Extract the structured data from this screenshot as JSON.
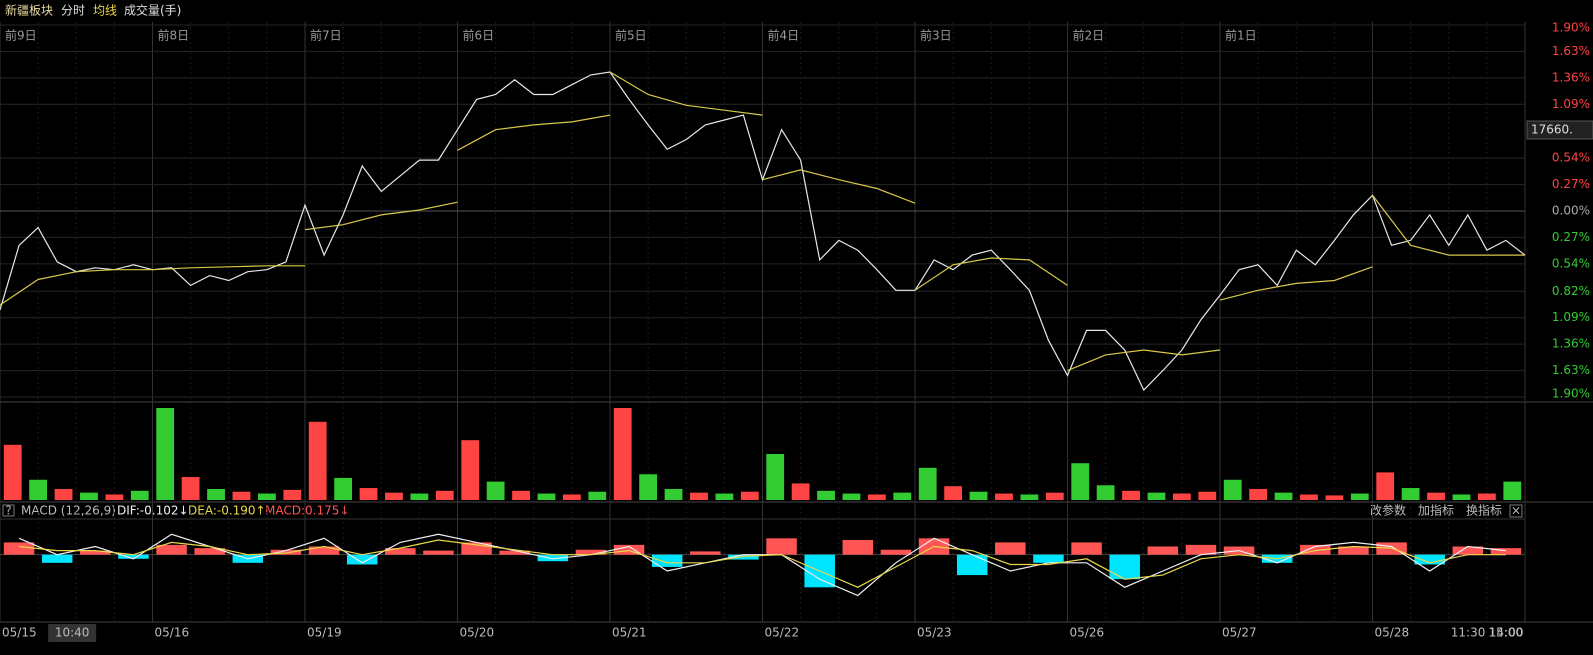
{
  "header": {
    "tabs": [
      "新疆板块",
      "分时",
      "均线",
      "成交量(手)"
    ]
  },
  "chart_data": [
    {
      "type": "line",
      "xlim": [
        0,
        10
      ],
      "ylim": [
        -1.9,
        1.9
      ],
      "grid": true,
      "xticks": [
        {
          "value": 0,
          "label": "前9日"
        },
        {
          "value": 1,
          "label": "前8日"
        },
        {
          "value": 2,
          "label": "前7日"
        },
        {
          "value": 3,
          "label": "前6日"
        },
        {
          "value": 4,
          "label": "前5日"
        },
        {
          "value": 5,
          "label": "前4日"
        },
        {
          "value": 6,
          "label": "前3日"
        },
        {
          "value": 7,
          "label": "前2日"
        },
        {
          "value": 8,
          "label": "前1日"
        }
      ],
      "yticks": [
        {
          "value": 1.9,
          "label": "1.90%"
        },
        {
          "value": 1.63,
          "label": "1.63%"
        },
        {
          "value": 1.36,
          "label": "1.36%"
        },
        {
          "value": 1.09,
          "label": "1.09%"
        },
        {
          "value": 0.54,
          "label": "0.54%"
        },
        {
          "value": 0.27,
          "label": "0.27%"
        },
        {
          "value": 0,
          "label": "0.00%"
        },
        {
          "value": -0.27,
          "label": "0.27%"
        },
        {
          "value": -0.54,
          "label": "0.54%"
        },
        {
          "value": -0.82,
          "label": "0.82%"
        },
        {
          "value": -1.09,
          "label": "1.09%"
        },
        {
          "value": -1.36,
          "label": "1.36%"
        },
        {
          "value": -1.63,
          "label": "1.63%"
        },
        {
          "value": -1.9,
          "label": "1.90%"
        }
      ],
      "up_color": "#ff4444",
      "down_color": "#33cc33",
      "flat_color": "#aaaaaa",
      "last_price_label": "17660.",
      "series": [
        {
          "color": "#e8e8e8",
          "x": [
            0,
            0.125,
            0.25,
            0.375,
            0.5,
            0.625,
            0.75,
            0.875,
            1,
            1.125,
            1.25,
            1.375,
            1.5,
            1.625,
            1.75,
            1.875,
            2,
            2.125,
            2.25,
            2.375,
            2.5,
            2.625,
            2.75,
            2.875,
            3,
            3.125,
            3.25,
            3.375,
            3.5,
            3.625,
            3.75,
            3.875,
            4,
            4.125,
            4.25,
            4.375,
            4.5,
            4.625,
            4.75,
            4.875,
            5,
            5.125,
            5.25,
            5.375,
            5.5,
            5.625,
            5.75,
            5.875,
            6,
            6.125,
            6.25,
            6.375,
            6.5,
            6.625,
            6.75,
            6.875,
            7,
            7.125,
            7.25,
            7.375,
            7.5,
            7.625,
            7.75,
            7.875,
            8,
            8.125,
            8.25,
            8.375,
            8.5,
            8.625,
            8.75,
            8.875,
            9,
            9.125,
            9.25,
            9.375,
            9.5,
            9.625,
            9.75,
            9.875,
            10
          ],
          "values": [
            -1.01,
            -0.35,
            -0.17,
            -0.52,
            -0.62,
            -0.58,
            -0.6,
            -0.55,
            -0.6,
            -0.58,
            -0.76,
            -0.66,
            -0.71,
            -0.62,
            -0.6,
            -0.52,
            0.06,
            -0.45,
            -0.04,
            0.46,
            0.2,
            0.36,
            0.52,
            0.52,
            0.83,
            1.14,
            1.19,
            1.34,
            1.19,
            1.19,
            1.29,
            1.39,
            1.42,
            1.14,
            0.88,
            0.63,
            0.73,
            0.88,
            0.93,
            0.98,
            0.32,
            0.83,
            0.52,
            -0.5,
            -0.3,
            -0.4,
            -0.6,
            -0.81,
            -0.81,
            -0.5,
            -0.6,
            -0.45,
            -0.4,
            -0.6,
            -0.81,
            -1.32,
            -1.68,
            -1.22,
            -1.22,
            -1.42,
            -1.83,
            -1.63,
            -1.42,
            -1.11,
            -0.86,
            -0.6,
            -0.55,
            -0.76,
            -0.4,
            -0.55,
            -0.3,
            -0.04,
            0.16,
            -0.35,
            -0.3,
            -0.04,
            -0.35,
            -0.04,
            -0.4,
            -0.3,
            -0.45
          ]
        },
        {
          "color": "#d8c84a",
          "x": [
            0,
            0.25,
            0.5,
            0.75,
            1,
            1.25,
            1.5,
            1.75,
            2,
            2,
            2,
            2.25,
            2.5,
            2.75,
            3,
            3,
            3,
            3.25,
            3.5,
            3.75,
            4,
            4,
            4,
            4.25,
            4.5,
            4.75,
            5,
            5,
            5,
            5.25,
            5.5,
            5.75,
            6,
            6,
            6,
            6.25,
            6.5,
            6.75,
            7,
            7,
            7,
            7.25,
            7.5,
            7.75,
            8,
            8,
            8,
            8.25,
            8.5,
            8.75,
            9,
            9,
            9,
            9.25,
            9.5,
            9.75,
            10
          ],
          "values": [
            -0.96,
            -0.7,
            -0.62,
            -0.6,
            -0.6,
            -0.58,
            -0.57,
            -0.56,
            -0.56,
            null,
            -0.19,
            -0.14,
            -0.04,
            0.01,
            0.09,
            null,
            0.62,
            0.83,
            0.88,
            0.91,
            0.98,
            null,
            1.42,
            1.19,
            1.08,
            1.03,
            0.98,
            null,
            0.32,
            0.42,
            0.32,
            0.23,
            0.08,
            null,
            -0.81,
            -0.55,
            -0.48,
            -0.5,
            -0.76,
            null,
            -1.63,
            -1.47,
            -1.42,
            -1.47,
            -1.42,
            null,
            -0.91,
            -0.81,
            -0.74,
            -0.71,
            -0.57,
            null,
            0.16,
            -0.35,
            -0.45,
            -0.45,
            -0.45
          ]
        }
      ]
    },
    {
      "type": "bar",
      "ylim": [
        0,
        100
      ],
      "values": [
        60,
        22,
        12,
        8,
        6,
        10,
        100,
        25,
        12,
        9,
        7,
        11,
        85,
        24,
        13,
        8,
        7,
        10,
        65,
        20,
        10,
        7,
        6,
        9,
        100,
        28,
        12,
        8,
        7,
        9,
        50,
        18,
        10,
        7,
        6,
        8,
        35,
        15,
        9,
        7,
        6,
        8,
        40,
        16,
        10,
        8,
        7,
        9,
        22,
        12,
        8,
        6,
        5,
        7,
        30,
        13,
        8,
        6,
        7,
        20
      ],
      "colors": [
        "#ff4444",
        "#33cc33",
        "#ff4444",
        "#33cc33",
        "#ff4444",
        "#33cc33",
        "#33cc33",
        "#ff4444",
        "#33cc33",
        "#ff4444",
        "#33cc33",
        "#ff4444",
        "#ff4444",
        "#33cc33",
        "#ff4444",
        "#ff4444",
        "#33cc33",
        "#ff4444",
        "#ff4444",
        "#33cc33",
        "#ff4444",
        "#33cc33",
        "#ff4444",
        "#33cc33",
        "#ff4444",
        "#33cc33",
        "#33cc33",
        "#ff4444",
        "#33cc33",
        "#ff4444",
        "#33cc33",
        "#ff4444",
        "#33cc33",
        "#33cc33",
        "#ff4444",
        "#33cc33",
        "#33cc33",
        "#ff4444",
        "#33cc33",
        "#ff4444",
        "#33cc33",
        "#ff4444",
        "#33cc33",
        "#33cc33",
        "#ff4444",
        "#33cc33",
        "#ff4444",
        "#ff4444",
        "#33cc33",
        "#ff4444",
        "#33cc33",
        "#ff4444",
        "#ff4444",
        "#33cc33",
        "#ff4444",
        "#33cc33",
        "#ff4444",
        "#33cc33",
        "#ff4444",
        "#33cc33"
      ]
    },
    {
      "type": "macd",
      "ylim": [
        -0.8,
        0.4
      ],
      "xlim": [
        0,
        10
      ],
      "xticks": [
        {
          "value": 0,
          "label": "05/15"
        },
        {
          "value": 0.46,
          "label": "10:40"
        },
        {
          "value": 1,
          "label": "05/16"
        },
        {
          "value": 2,
          "label": "05/19"
        },
        {
          "value": 3,
          "label": "05/20"
        },
        {
          "value": 4,
          "label": "05/21"
        },
        {
          "value": 5,
          "label": "05/22"
        },
        {
          "value": 6,
          "label": "05/23"
        },
        {
          "value": 7,
          "label": "05/26"
        },
        {
          "value": 8,
          "label": "05/27"
        },
        {
          "value": 9,
          "label": "05/28"
        },
        {
          "value": 9.5,
          "label": "11:30"
        },
        {
          "value": 9.75,
          "label": "14:00"
        },
        {
          "value": 10,
          "label": "15:00"
        }
      ],
      "highlight_tick": 1,
      "up_color": "#ff5555",
      "down_color": "#00e5ff",
      "values": [
        0.15,
        -0.1,
        0.05,
        -0.05,
        0.12,
        0.08,
        -0.1,
        0.06,
        0.1,
        -0.12,
        0.08,
        0.05,
        0.15,
        0.05,
        -0.08,
        0.06,
        0.12,
        -0.15,
        0.04,
        -0.06,
        0.2,
        -0.4,
        0.18,
        0.06,
        0.2,
        -0.25,
        0.15,
        -0.1,
        0.15,
        -0.3,
        0.1,
        0.12,
        0.1,
        -0.1,
        0.12,
        0.1,
        0.15,
        -0.12,
        0.1,
        0.08
      ],
      "series": [
        {
          "color": "#f0f0f0",
          "values": [
            0.2,
            0.0,
            0.1,
            -0.05,
            0.25,
            0.1,
            -0.05,
            0.05,
            0.2,
            -0.1,
            0.15,
            0.25,
            0.15,
            0.05,
            -0.05,
            0.0,
            0.1,
            -0.2,
            -0.1,
            0.0,
            0.0,
            -0.3,
            -0.5,
            -0.1,
            0.2,
            0.0,
            -0.2,
            -0.1,
            -0.1,
            -0.4,
            -0.2,
            0.0,
            0.05,
            -0.1,
            0.1,
            0.15,
            0.1,
            -0.2,
            0.1,
            0.05
          ]
        },
        {
          "color": "#e8d84a",
          "values": [
            0.1,
            0.05,
            0.05,
            0.0,
            0.15,
            0.1,
            0.0,
            0.02,
            0.1,
            0.0,
            0.08,
            0.18,
            0.12,
            0.06,
            0.0,
            0.0,
            0.05,
            -0.1,
            -0.1,
            -0.02,
            0.0,
            -0.2,
            -0.4,
            -0.15,
            0.1,
            0.05,
            -0.12,
            -0.12,
            -0.05,
            -0.3,
            -0.25,
            -0.05,
            0.0,
            -0.05,
            0.05,
            0.1,
            0.08,
            -0.1,
            0.0,
            0.0
          ]
        }
      ]
    }
  ],
  "indicator_bar": {
    "help": "?",
    "name": "MACD (12,26,9)",
    "dif": "DIF:-0.102↓",
    "dea": "DEA:-0.190↑",
    "macd": "MACD:0.175↓",
    "buttons": [
      "改参数",
      "加指标",
      "换指标"
    ],
    "close": "×"
  }
}
